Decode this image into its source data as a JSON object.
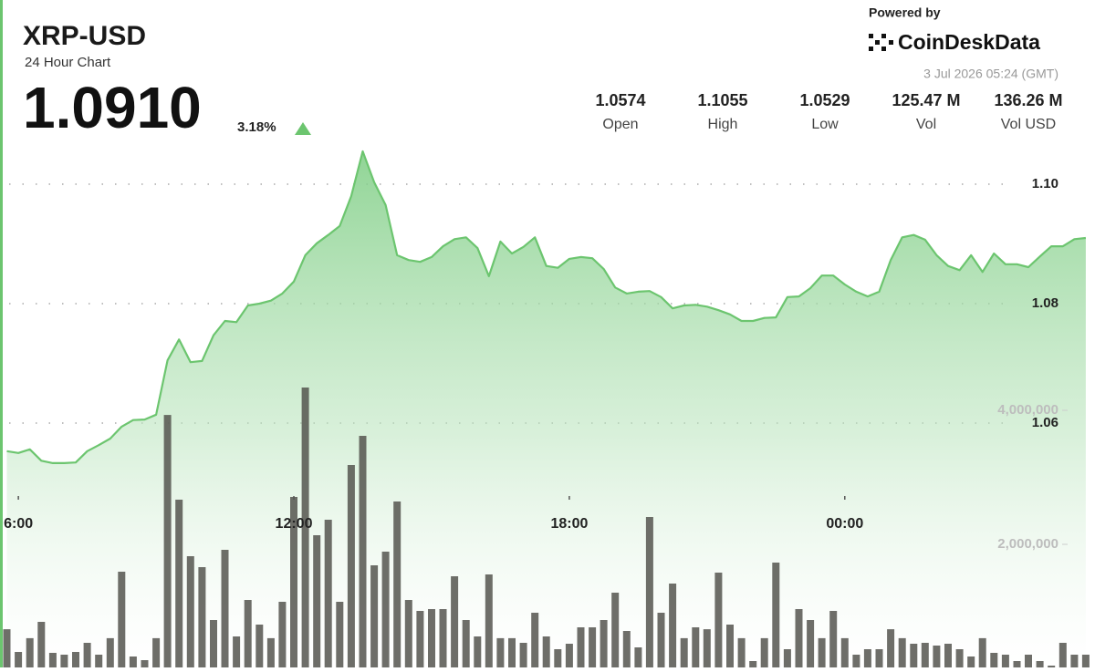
{
  "header": {
    "title": "XRP-USD",
    "subtitle": "24 Hour Chart",
    "price": "1.0910",
    "change": "3.18%",
    "powered_by": "Powered by",
    "brand": "CoinDeskData",
    "timestamp": "3 Jul 2026 05:24 (GMT)",
    "stats": [
      {
        "value": "1.0574",
        "label": "Open"
      },
      {
        "value": "1.1055",
        "label": "High"
      },
      {
        "value": "1.0529",
        "label": "Low"
      },
      {
        "value": "125.47 M",
        "label": "Vol"
      },
      {
        "value": "136.26 M",
        "label": "Vol USD"
      }
    ]
  },
  "chart_data": {
    "type": "line",
    "x": [
      5.75,
      6,
      6.25,
      6.5,
      6.75,
      7,
      7.25,
      7.5,
      7.75,
      8,
      8.25,
      8.5,
      8.75,
      9,
      9.25,
      9.5,
      9.75,
      10,
      10.25,
      10.5,
      10.75,
      11,
      11.25,
      11.5,
      11.75,
      12,
      12.25,
      12.5,
      12.75,
      13,
      13.25,
      13.5,
      13.75,
      14,
      14.25,
      14.5,
      14.75,
      15,
      15.25,
      15.5,
      15.75,
      16,
      16.25,
      16.5,
      16.75,
      17,
      17.25,
      17.5,
      17.75,
      18,
      18.25,
      18.5,
      18.75,
      19,
      19.25,
      19.5,
      19.75,
      20,
      20.25,
      20.5,
      20.75,
      21,
      21.25,
      21.5,
      21.75,
      22,
      22.25,
      22.5,
      22.75,
      23,
      23.25,
      23.5,
      23.75,
      24,
      24.25,
      24.5,
      24.75,
      25,
      25.25,
      25.5,
      25.75,
      26,
      26.25,
      26.5,
      26.75,
      27,
      27.25,
      27.5,
      27.75,
      28,
      28.25,
      28.5,
      28.75,
      29,
      29.25
    ],
    "series": [
      {
        "color": "#6cc56f",
        "values": [
          1.0553,
          1.055,
          1.0556,
          1.0537,
          1.0533,
          1.0533,
          1.0534,
          1.0553,
          1.0563,
          1.0574,
          1.0594,
          1.0605,
          1.0606,
          1.0614,
          1.0705,
          1.074,
          1.0702,
          1.0704,
          1.0747,
          1.0771,
          1.0769,
          1.0797,
          1.08,
          1.0805,
          1.0817,
          1.0837,
          1.0881,
          1.0901,
          1.0915,
          1.093,
          1.098,
          1.1055,
          1.1003,
          1.0965,
          1.0881,
          1.0873,
          1.087,
          1.0878,
          1.0896,
          1.0908,
          1.0911,
          1.0893,
          1.0846,
          1.0904,
          1.0884,
          1.0895,
          1.0911,
          1.0863,
          1.086,
          1.0875,
          1.0878,
          1.0876,
          1.0858,
          1.0827,
          1.0817,
          1.082,
          1.0821,
          1.0811,
          1.0792,
          1.0797,
          1.0798,
          1.0795,
          1.0789,
          1.0782,
          1.0771,
          1.0771,
          1.0776,
          1.0777,
          1.0811,
          1.0812,
          1.0826,
          1.0847,
          1.0847,
          1.0832,
          1.082,
          1.0812,
          1.082,
          1.0873,
          1.0911,
          1.0915,
          1.0907,
          1.0881,
          1.0863,
          1.0856,
          1.0881,
          1.0853,
          1.0884,
          1.0866,
          1.0866,
          1.0861,
          1.0879,
          1.0896,
          1.0896,
          1.0908,
          1.091
        ]
      },
      {
        "type": "bar",
        "axis": "y2",
        "color": "#55554f",
        "values": [
          734000,
          395000,
          600000,
          843000,
          381000,
          354000,
          395000,
          531000,
          354000,
          600000,
          1592000,
          327000,
          272000,
          600000,
          3930000,
          2667000,
          1823000,
          1660000,
          871000,
          1918000,
          626000,
          1170000,
          803000,
          600000,
          1143000,
          2707000,
          4340000,
          2136000,
          2367000,
          1143000,
          3184000,
          3619000,
          1687000,
          1891000,
          2639000,
          1170000,
          1007000,
          1034000,
          1034000,
          1524000,
          871000,
          626000,
          1551000,
          600000,
          600000,
          531000,
          980000,
          626000,
          435000,
          517000,
          762000,
          762000,
          871000,
          1279000,
          707000,
          463000,
          2408000,
          980000,
          1415000,
          600000,
          762000,
          734000,
          1578000,
          803000,
          600000,
          258000,
          600000,
          1728000,
          435000,
          1034000,
          871000,
          600000,
          1007000,
          600000,
          354000,
          435000,
          435000,
          734000,
          600000,
          517000,
          531000,
          490000,
          517000,
          435000,
          327000,
          600000,
          381000,
          354000,
          258000,
          354000,
          258000,
          190000,
          531000,
          354000,
          354000
        ]
      }
    ],
    "xlim": [
      5.6,
      29.45
    ],
    "xticks": [
      {
        "value": 6,
        "label": "6:00"
      },
      {
        "value": 12,
        "label": "12:00"
      },
      {
        "value": 18,
        "label": "18:00"
      },
      {
        "value": 24,
        "label": "00:00"
      }
    ],
    "ylim": [
      1.02,
      1.11
    ],
    "yticks": [
      1.06,
      1.08,
      {
        "value": 1.1,
        "label": "1.10"
      }
    ],
    "y2lim": [
      0,
      8000000
    ],
    "y2ticks": [
      {
        "value": 2000000,
        "label": "2,000,000"
      },
      {
        "value": 4000000,
        "label": "4,000,000"
      }
    ],
    "grid": true
  }
}
